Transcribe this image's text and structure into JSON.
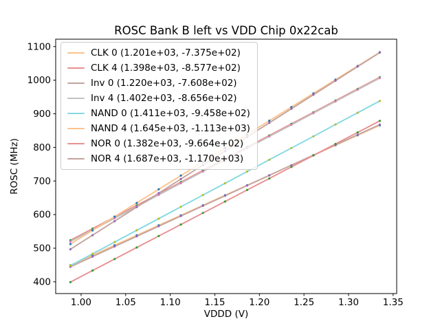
{
  "chart_data": {
    "type": "scatter",
    "title": "ROSC Bank B left vs VDD Chip 0x22cab",
    "xlabel": "VDDD (V)",
    "ylabel": "ROSC (MHz)",
    "grid": false,
    "legend_position": "upper left",
    "xlim": [
      0.9715,
      1.354
    ],
    "ylim": [
      365,
      1122
    ],
    "xtick_values": [
      1.0,
      1.05,
      1.1,
      1.15,
      1.2,
      1.25,
      1.3,
      1.35
    ],
    "xtick_labels": [
      "1.00",
      "1.05",
      "1.10",
      "1.15",
      "1.20",
      "1.25",
      "1.30",
      "1.35"
    ],
    "ytick_values": [
      400,
      500,
      600,
      700,
      800,
      900,
      1000,
      1100
    ],
    "ytick_labels": [
      "400",
      "500",
      "600",
      "700",
      "800",
      "900",
      "1000",
      "1100"
    ],
    "x": [
      0.988,
      1.0128,
      1.0376,
      1.0624,
      1.0871,
      1.1119,
      1.1367,
      1.1615,
      1.1863,
      1.2111,
      1.2359,
      1.2606,
      1.2854,
      1.3102,
      1.335
    ],
    "series": [
      {
        "name": "CLK 0",
        "legend_label": "CLK 0 (1.201e+03, -7.375e+02)",
        "fit_slope": 1201,
        "fit_intercept": -737.5,
        "marker_color": "#1f77b4",
        "line_color": "#fcc28c",
        "y": [
          449.1,
          478.9,
          508.7,
          538.4,
          568.1,
          597.9,
          627.7,
          657.5,
          687.3,
          717.0,
          746.8,
          776.5,
          806.3,
          836.1,
          865.8
        ]
      },
      {
        "name": "CLK 4",
        "legend_label": "CLK 4 (1.398e+03, -8.577e+02)",
        "fit_slope": 1398,
        "fit_intercept": -857.7,
        "marker_color": "#2ca02c",
        "line_color": "#e89091",
        "y": [
          523.5,
          558.2,
          592.9,
          627.5,
          662.1,
          696.7,
          731.4,
          766.1,
          800.8,
          835.4,
          870.1,
          904.6,
          939.3,
          974.0,
          1008.6
        ]
      },
      {
        "name": "Inv 0",
        "legend_label": "Inv 0 (1.220e+03, -7.608e+02)",
        "fit_slope": 1220,
        "fit_intercept": -760.8,
        "marker_color": "#9467bd",
        "line_color": "#c3a49e",
        "y": [
          444.6,
          474.8,
          505.1,
          535.3,
          565.5,
          595.7,
          626.0,
          656.2,
          686.5,
          716.7,
          747.0,
          777.1,
          807.4,
          837.6,
          867.9
        ]
      },
      {
        "name": "Inv 4",
        "legend_label": "Inv 4 (1.402e+03, -8.656e+02)",
        "fit_slope": 1402,
        "fit_intercept": -865.6,
        "marker_color": "#e377c2",
        "line_color": "#c2c2c2",
        "y": [
          519.6,
          554.3,
          589.1,
          623.9,
          658.5,
          693.3,
          728.1,
          762.8,
          797.6,
          832.4,
          867.1,
          901.8,
          936.6,
          971.4,
          1006.1
        ]
      },
      {
        "name": "NAND 0",
        "legend_label": "NAND 0 (1.411e+03, -9.458e+02)",
        "fit_slope": 1411,
        "fit_intercept": -945.8,
        "marker_color": "#bcbd22",
        "line_color": "#84d9e2",
        "y": [
          448.3,
          483.3,
          518.3,
          553.2,
          588.1,
          623.1,
          658.1,
          693.1,
          728.1,
          763.1,
          798.1,
          833.0,
          868.0,
          903.0,
          938.0
        ]
      },
      {
        "name": "NAND 4",
        "legend_label": "NAND 4 (1.645e+03, -1.113e+03)",
        "fit_slope": 1645,
        "fit_intercept": -1113,
        "marker_color": "#1f77b4",
        "line_color": "#fcc28c",
        "y": [
          512.3,
          553.1,
          593.9,
          634.6,
          675.3,
          716.1,
          756.9,
          797.7,
          838.5,
          879.3,
          920.1,
          960.7,
          1001.5,
          1042.3,
          1083.1
        ]
      },
      {
        "name": "NOR 0",
        "legend_label": "NOR 0 (1.382e+03, -9.664e+02)",
        "fit_slope": 1382,
        "fit_intercept": -966.4,
        "marker_color": "#2ca02c",
        "line_color": "#e89091",
        "y": [
          399.0,
          433.5,
          467.8,
          502.0,
          536.2,
          570.4,
          604.7,
          639.0,
          673.3,
          707.5,
          741.8,
          776.0,
          810.2,
          844.5,
          878.8
        ]
      },
      {
        "name": "NOR 4",
        "legend_label": "NOR 4 (1.687e+03, -1.170e+03)",
        "fit_slope": 1687,
        "fit_intercept": -1170,
        "marker_color": "#9467bd",
        "line_color": "#c3a49e",
        "y": [
          496.8,
          538.6,
          580.4,
          622.3,
          663.9,
          705.8,
          747.6,
          789.4,
          831.3,
          873.1,
          915.0,
          956.6,
          998.5,
          1040.3,
          1082.1
        ]
      }
    ],
    "colors": {
      "background": "#ffffff",
      "spine": "#000000",
      "tick_text": "#000000",
      "legend_border": "#cccccc"
    }
  }
}
